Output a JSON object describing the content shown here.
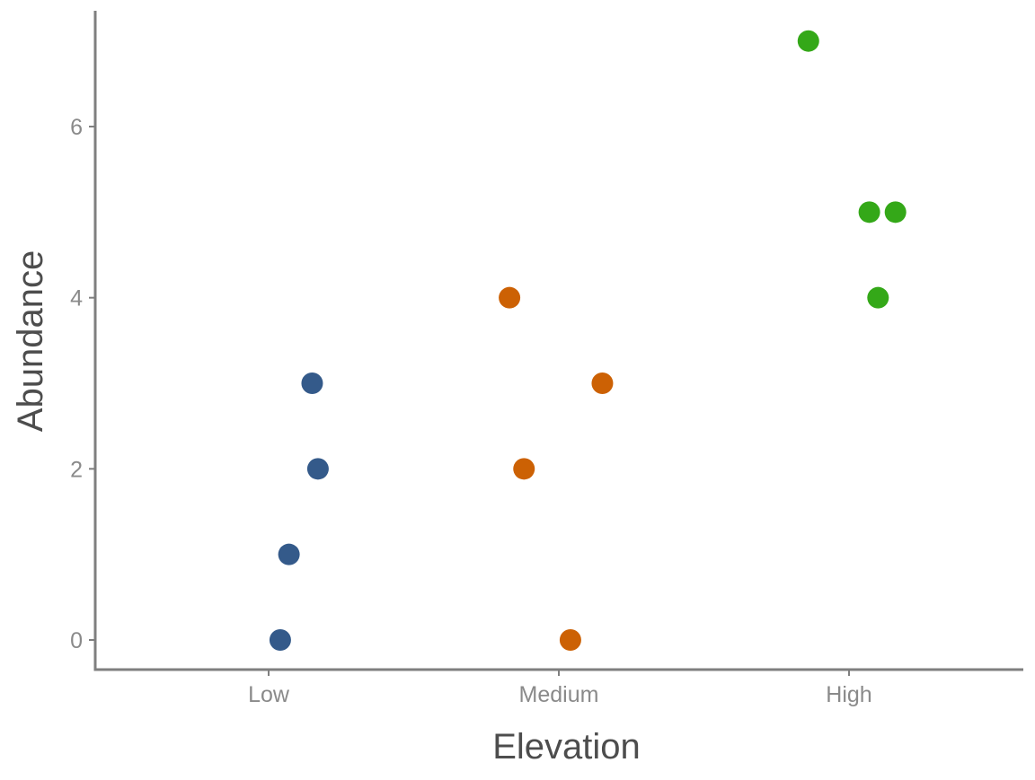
{
  "chart_data": {
    "type": "scatter",
    "title": "",
    "xlabel": "Elevation",
    "ylabel": "Abundance",
    "categories": [
      "Low",
      "Medium",
      "High"
    ],
    "yticks": [
      0,
      2,
      4,
      6
    ],
    "ylim": [
      -0.35,
      7.35
    ],
    "grid": false,
    "legend": "none",
    "jitter": true,
    "series": [
      {
        "category": "Low",
        "color": "#345a8a",
        "x": [
          1.04,
          1.07,
          1.15,
          1.17
        ],
        "y": [
          0,
          1,
          3,
          2
        ]
      },
      {
        "category": "Medium",
        "color": "#cc6104",
        "x": [
          1.83,
          1.88,
          2.04,
          2.15
        ],
        "y": [
          4,
          2,
          0,
          3
        ]
      },
      {
        "category": "High",
        "color": "#34a818",
        "x": [
          2.86,
          3.07,
          3.1,
          3.16
        ],
        "y": [
          7,
          5,
          4,
          5
        ]
      }
    ]
  }
}
